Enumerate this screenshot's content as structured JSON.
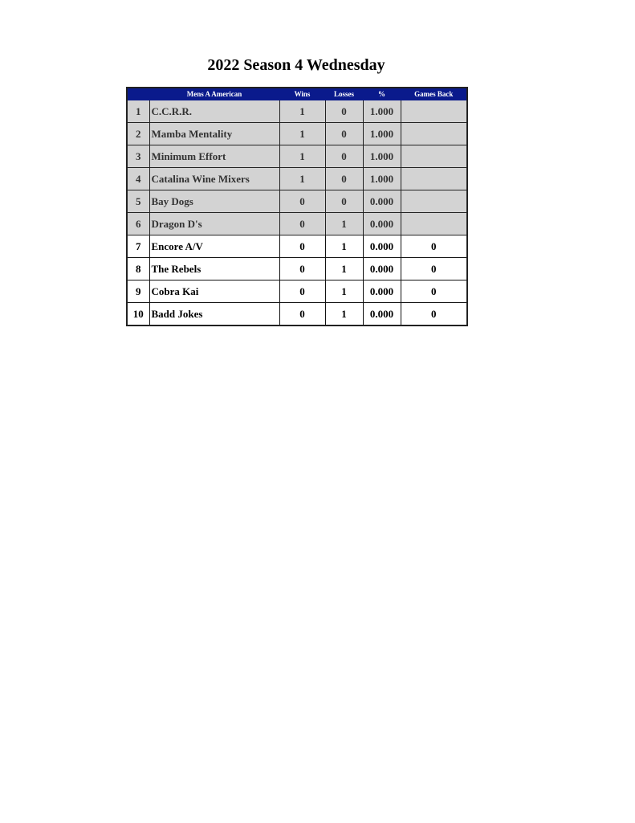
{
  "title": "2022 Season 4 Wednesday",
  "table": {
    "headers": [
      "",
      "Mens A American",
      "Wins",
      "Losses",
      "%",
      "Games Back"
    ],
    "header_color": "#0a1a8c",
    "rows": [
      {
        "rank": "1",
        "team": "C.C.R.R.",
        "wins": "1",
        "losses": "0",
        "pct": "1.000",
        "gb": "",
        "style": "gray"
      },
      {
        "rank": "2",
        "team": "Mamba Mentality",
        "wins": "1",
        "losses": "0",
        "pct": "1.000",
        "gb": "",
        "style": "gray"
      },
      {
        "rank": "3",
        "team": "Minimum Effort",
        "wins": "1",
        "losses": "0",
        "pct": "1.000",
        "gb": "",
        "style": "gray"
      },
      {
        "rank": "4",
        "team": "Catalina Wine Mixers",
        "wins": "1",
        "losses": "0",
        "pct": "1.000",
        "gb": "",
        "style": "gray"
      },
      {
        "rank": "5",
        "team": "Bay Dogs",
        "wins": "0",
        "losses": "0",
        "pct": "0.000",
        "gb": "",
        "style": "gray"
      },
      {
        "rank": "6",
        "team": "Dragon D's",
        "wins": "0",
        "losses": "1",
        "pct": "0.000",
        "gb": "",
        "style": "gray"
      },
      {
        "rank": "7",
        "team": "Encore A/V",
        "wins": "0",
        "losses": "1",
        "pct": "0.000",
        "gb": "0",
        "style": "white"
      },
      {
        "rank": "8",
        "team": "The Rebels",
        "wins": "0",
        "losses": "1",
        "pct": "0.000",
        "gb": "0",
        "style": "white"
      },
      {
        "rank": "9",
        "team": "Cobra Kai",
        "wins": "0",
        "losses": "1",
        "pct": "0.000",
        "gb": "0",
        "style": "white"
      },
      {
        "rank": "10",
        "team": "Badd Jokes",
        "wins": "0",
        "losses": "1",
        "pct": "0.000",
        "gb": "0",
        "style": "white"
      }
    ]
  }
}
